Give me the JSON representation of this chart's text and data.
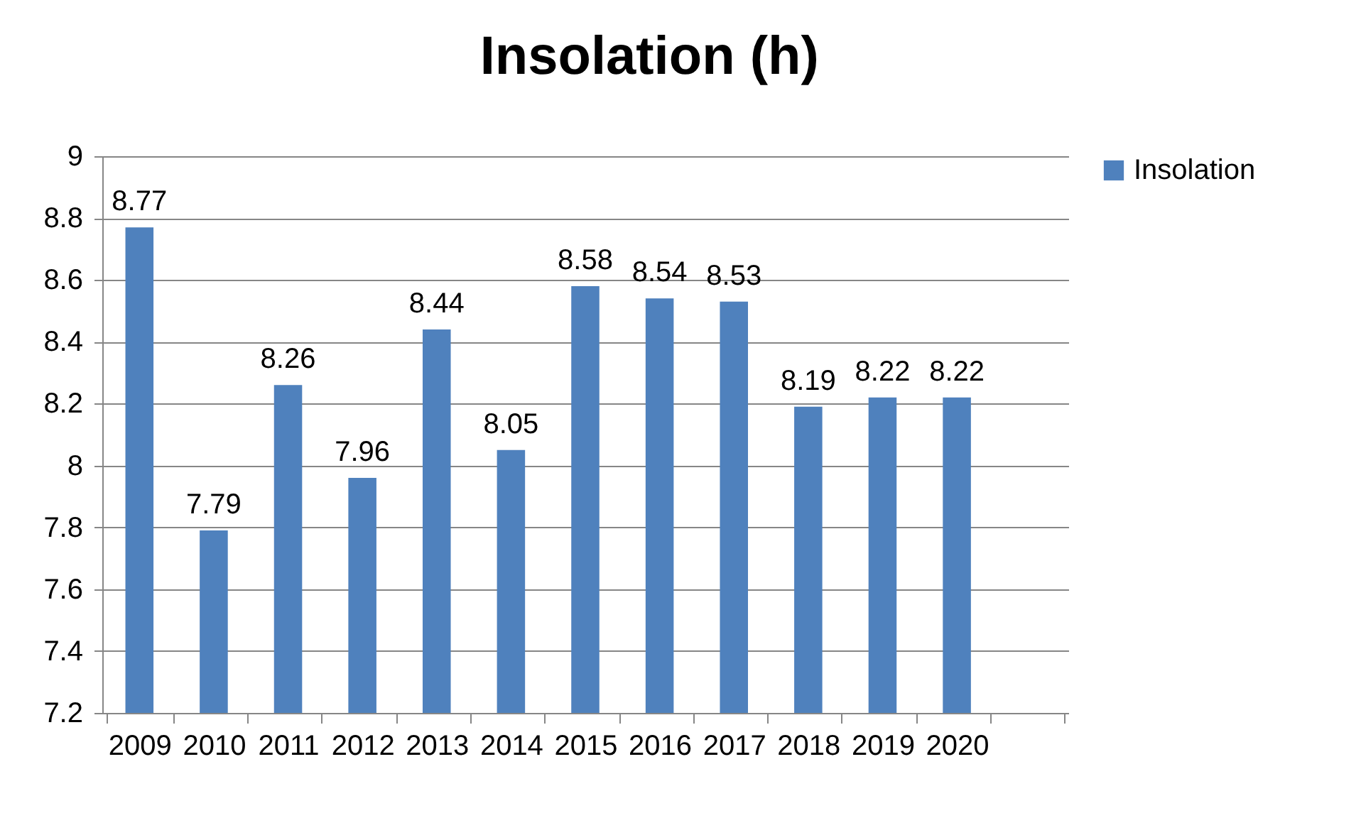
{
  "chart_data": {
    "type": "bar",
    "title": "Insolation (h)",
    "categories": [
      "2009",
      "2010",
      "2011",
      "2012",
      "2013",
      "2014",
      "2015",
      "2016",
      "2017",
      "2018",
      "2019",
      "2020",
      null
    ],
    "series": [
      {
        "name": "Insolation",
        "color": "#4f81bd",
        "values": [
          8.77,
          7.79,
          8.26,
          7.96,
          8.44,
          8.05,
          8.58,
          8.54,
          8.53,
          8.19,
          8.22,
          8.22,
          null
        ]
      }
    ],
    "ylim": [
      7.2,
      9
    ],
    "yticks": [
      7.2,
      7.4,
      7.6,
      7.8,
      8,
      8.2,
      8.4,
      8.6,
      8.8,
      9
    ],
    "grid": "y",
    "legend": "right",
    "data_labels": true
  }
}
